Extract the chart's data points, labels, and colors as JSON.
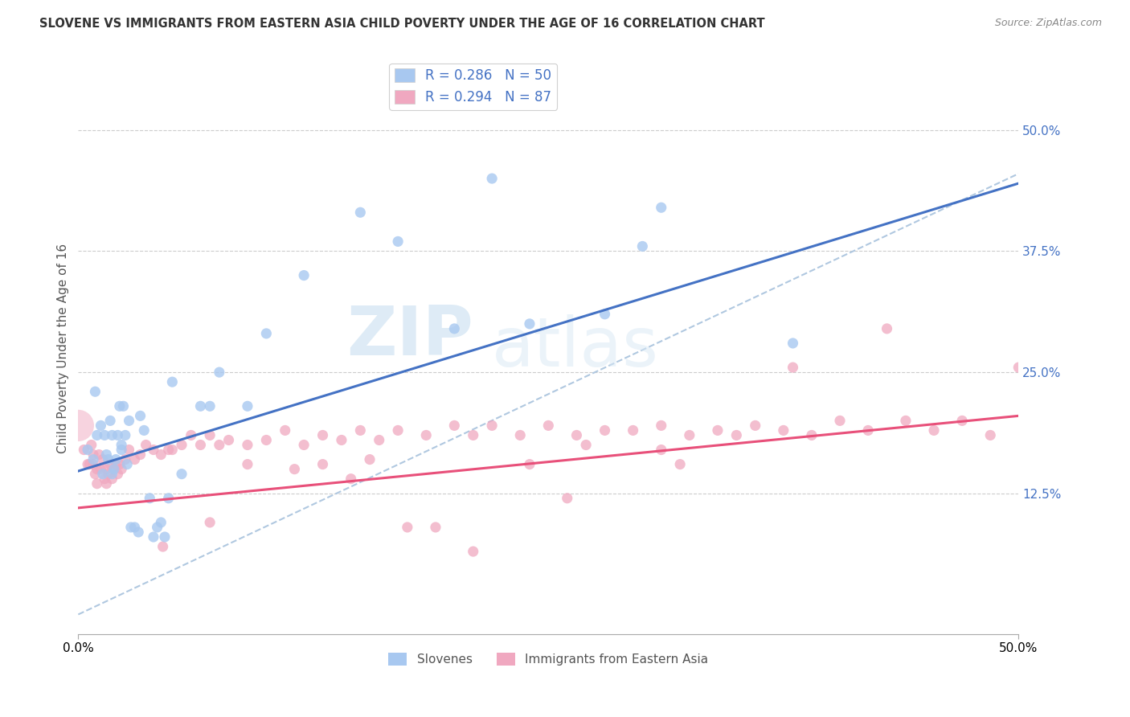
{
  "title": "SLOVENE VS IMMIGRANTS FROM EASTERN ASIA CHILD POVERTY UNDER THE AGE OF 16 CORRELATION CHART",
  "source": "Source: ZipAtlas.com",
  "ylabel": "Child Poverty Under the Age of 16",
  "xlim": [
    0.0,
    0.5
  ],
  "ylim": [
    -0.02,
    0.57
  ],
  "y_tick_labels_right": [
    "50.0%",
    "37.5%",
    "25.0%",
    "12.5%"
  ],
  "y_tick_vals_right": [
    0.5,
    0.375,
    0.25,
    0.125
  ],
  "legend_label1": "Slovenes",
  "legend_label2": "Immigrants from Eastern Asia",
  "R1": "0.286",
  "N1": "50",
  "R2": "0.294",
  "N2": "87",
  "color_blue": "#a8c8f0",
  "color_pink": "#f0a8c0",
  "color_text_blue": "#4472c4",
  "color_trendline_blue": "#4472c4",
  "color_trendline_pink": "#e8507a",
  "color_dashed": "#b0c8e0",
  "watermark_zip": "ZIP",
  "watermark_atlas": "atlas",
  "blue_line_x": [
    0.0,
    0.5
  ],
  "blue_line_y": [
    0.148,
    0.445
  ],
  "pink_line_x": [
    0.0,
    0.5
  ],
  "pink_line_y": [
    0.11,
    0.205
  ],
  "dash_line_x": [
    0.0,
    0.5
  ],
  "dash_line_y": [
    0.0,
    0.455
  ],
  "blue_x": [
    0.005,
    0.008,
    0.009,
    0.01,
    0.012,
    0.013,
    0.014,
    0.015,
    0.016,
    0.017,
    0.018,
    0.018,
    0.019,
    0.02,
    0.021,
    0.022,
    0.023,
    0.023,
    0.024,
    0.025,
    0.026,
    0.027,
    0.028,
    0.03,
    0.032,
    0.033,
    0.035,
    0.038,
    0.04,
    0.042,
    0.044,
    0.046,
    0.048,
    0.05,
    0.055,
    0.065,
    0.07,
    0.075,
    0.09,
    0.1,
    0.12,
    0.15,
    0.17,
    0.2,
    0.22,
    0.24,
    0.28,
    0.3,
    0.31,
    0.38
  ],
  "blue_y": [
    0.17,
    0.16,
    0.23,
    0.185,
    0.195,
    0.145,
    0.185,
    0.165,
    0.16,
    0.2,
    0.185,
    0.145,
    0.15,
    0.16,
    0.185,
    0.215,
    0.175,
    0.17,
    0.215,
    0.185,
    0.155,
    0.2,
    0.09,
    0.09,
    0.085,
    0.205,
    0.19,
    0.12,
    0.08,
    0.09,
    0.095,
    0.08,
    0.12,
    0.24,
    0.145,
    0.215,
    0.215,
    0.25,
    0.215,
    0.29,
    0.35,
    0.415,
    0.385,
    0.295,
    0.45,
    0.3,
    0.31,
    0.38,
    0.42,
    0.28
  ],
  "pink_x": [
    0.003,
    0.005,
    0.006,
    0.007,
    0.008,
    0.008,
    0.009,
    0.01,
    0.01,
    0.011,
    0.012,
    0.013,
    0.014,
    0.015,
    0.015,
    0.016,
    0.017,
    0.018,
    0.019,
    0.02,
    0.021,
    0.022,
    0.023,
    0.025,
    0.027,
    0.03,
    0.033,
    0.036,
    0.04,
    0.044,
    0.048,
    0.055,
    0.06,
    0.065,
    0.07,
    0.075,
    0.08,
    0.09,
    0.1,
    0.11,
    0.12,
    0.13,
    0.14,
    0.15,
    0.16,
    0.17,
    0.185,
    0.2,
    0.21,
    0.22,
    0.235,
    0.25,
    0.265,
    0.28,
    0.295,
    0.31,
    0.325,
    0.34,
    0.36,
    0.375,
    0.39,
    0.405,
    0.42,
    0.44,
    0.455,
    0.47,
    0.485,
    0.5,
    0.27,
    0.19,
    0.155,
    0.24,
    0.31,
    0.35,
    0.43,
    0.05,
    0.13,
    0.175,
    0.21,
    0.09,
    0.07,
    0.045,
    0.38,
    0.32,
    0.26,
    0.145,
    0.115
  ],
  "pink_y": [
    0.17,
    0.155,
    0.155,
    0.175,
    0.155,
    0.165,
    0.145,
    0.15,
    0.135,
    0.165,
    0.15,
    0.16,
    0.14,
    0.15,
    0.135,
    0.145,
    0.155,
    0.14,
    0.15,
    0.155,
    0.145,
    0.155,
    0.15,
    0.16,
    0.17,
    0.16,
    0.165,
    0.175,
    0.17,
    0.165,
    0.17,
    0.175,
    0.185,
    0.175,
    0.185,
    0.175,
    0.18,
    0.175,
    0.18,
    0.19,
    0.175,
    0.185,
    0.18,
    0.19,
    0.18,
    0.19,
    0.185,
    0.195,
    0.185,
    0.195,
    0.185,
    0.195,
    0.185,
    0.19,
    0.19,
    0.195,
    0.185,
    0.19,
    0.195,
    0.19,
    0.185,
    0.2,
    0.19,
    0.2,
    0.19,
    0.2,
    0.185,
    0.255,
    0.175,
    0.09,
    0.16,
    0.155,
    0.17,
    0.185,
    0.295,
    0.17,
    0.155,
    0.09,
    0.065,
    0.155,
    0.095,
    0.07,
    0.255,
    0.155,
    0.12,
    0.14,
    0.15
  ]
}
